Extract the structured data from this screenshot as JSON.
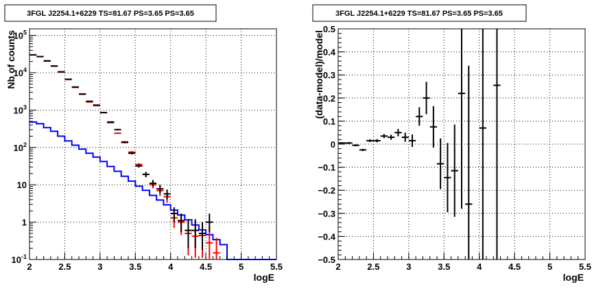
{
  "chart_data": [
    {
      "type": "line",
      "title": "3FGL J2254.1+6229 TS=81.67 PS=3.65 PS=3.65",
      "xlabel": "logE",
      "ylabel": "Nb of counts",
      "xlim": [
        2,
        5.5
      ],
      "ylim": [
        0.1,
        150000
      ],
      "yscale": "log",
      "grid": true,
      "x_ticks": [
        "2",
        "2.5",
        "3",
        "3.5",
        "4",
        "4.5",
        "5",
        "5.5"
      ],
      "y_ticks": [
        "10^-1",
        "1",
        "10",
        "10^2",
        "10^3",
        "10^4",
        "10^5"
      ],
      "series": [
        {
          "color": "#0000ff",
          "kind": "step",
          "bin_edges": [
            2.0,
            2.1,
            2.2,
            2.3,
            2.4,
            2.5,
            2.6,
            2.7,
            2.8,
            2.9,
            3.0,
            3.1,
            3.2,
            3.3,
            3.4,
            3.5,
            3.6,
            3.7,
            3.8,
            3.9,
            4.0,
            4.1,
            4.2,
            4.3,
            4.4,
            4.5,
            4.6,
            4.7,
            4.8,
            4.9,
            5.0,
            5.1,
            5.2,
            5.3,
            5.4,
            5.5
          ],
          "values": [
            480,
            430,
            340,
            270,
            200,
            150,
            115,
            90,
            70,
            55,
            42,
            31,
            23,
            17,
            12.5,
            9.2,
            7.1,
            5.2,
            3.9,
            2.9,
            2.1,
            1.55,
            1.15,
            0.84,
            0.62,
            0.46,
            0.34,
            0.25,
            0.1,
            0.1,
            0.1,
            0.1,
            0.1,
            0.1,
            0.1
          ]
        },
        {
          "color": "#ff0000",
          "kind": "errorbar",
          "x": [
            2.05,
            2.15,
            2.25,
            2.35,
            2.45,
            2.55,
            2.65,
            2.75,
            2.85,
            2.95,
            3.05,
            3.15,
            3.25,
            3.35,
            3.45,
            3.55,
            3.65,
            3.75,
            3.85,
            3.95,
            4.05,
            4.15,
            4.25,
            4.35,
            4.45,
            4.55,
            4.65
          ],
          "y": [
            30000,
            27000,
            21000,
            15000,
            10500,
            6600,
            4050,
            2650,
            1650,
            1320,
            850,
            460,
            240,
            135,
            75,
            35,
            19,
            10,
            7,
            4.8,
            1.3,
            1.0,
            0.5,
            0.42,
            0.44,
            0.28,
            0.15
          ],
          "ylow": [
            29700,
            26700,
            20800,
            14800,
            10400,
            6500,
            3980,
            2600,
            1620,
            1290,
            830,
            445,
            230,
            128,
            70,
            32,
            16,
            8,
            5,
            3.3,
            0.7,
            0.45,
            0.13,
            0.11,
            0.11,
            0.1,
            0.1
          ],
          "yhigh": [
            30300,
            27300,
            21200,
            15200,
            10600,
            6700,
            4120,
            2700,
            1680,
            1350,
            870,
            475,
            250,
            142,
            80,
            38,
            22,
            12.5,
            9,
            6.5,
            2.0,
            1.6,
            1.0,
            0.9,
            0.9,
            0.75,
            0.38
          ]
        },
        {
          "color": "#000000",
          "kind": "errorbar",
          "x": [
            2.05,
            2.15,
            2.25,
            2.35,
            2.45,
            2.55,
            2.65,
            2.75,
            2.85,
            2.95,
            3.05,
            3.15,
            3.25,
            3.35,
            3.45,
            3.55,
            3.65,
            3.75,
            3.85,
            3.95,
            4.05,
            4.15,
            4.25,
            4.35,
            4.45,
            4.55
          ],
          "y": [
            30200,
            27100,
            20600,
            15200,
            10600,
            6700,
            4150,
            2700,
            1720,
            1360,
            860,
            480,
            300,
            140,
            70,
            32,
            19,
            11,
            7.8,
            5.7,
            1.7,
            1.1,
            0.6,
            0.6,
            0.5,
            1.0
          ],
          "ylow": [
            29900,
            26800,
            20400,
            15000,
            10500,
            6600,
            4080,
            2650,
            1690,
            1330,
            840,
            465,
            285,
            133,
            65,
            29,
            16,
            9,
            6,
            4,
            1.0,
            0.55,
            0.2,
            0.2,
            0.18,
            0.55
          ],
          "yhigh": [
            30500,
            27400,
            20800,
            15400,
            10700,
            6800,
            4220,
            2750,
            1750,
            1390,
            880,
            495,
            315,
            147,
            75,
            35,
            22,
            13.5,
            10,
            7.5,
            2.5,
            1.7,
            1.2,
            1.2,
            1.0,
            1.7
          ]
        }
      ]
    },
    {
      "type": "scatter",
      "title": "3FGL J2254.1+6229 TS=81.67 PS=3.65 PS=3.65",
      "xlabel": "logE",
      "ylabel": "(data-model)/model",
      "xlim": [
        2,
        5.5
      ],
      "ylim": [
        -0.5,
        0.5
      ],
      "grid": true,
      "x_ticks": [
        "2",
        "2.5",
        "3",
        "3.5",
        "4",
        "4.5",
        "5",
        "5.5"
      ],
      "y_ticks": [
        "−0.5",
        "−0.4",
        "−0.3",
        "−0.2",
        "−0.1",
        "0",
        "0.1",
        "0.2",
        "0.3",
        "0.4",
        "0.5"
      ],
      "series": [
        {
          "color": "#000000",
          "x": [
            2.05,
            2.15,
            2.25,
            2.35,
            2.45,
            2.55,
            2.65,
            2.75,
            2.85,
            2.95,
            3.05,
            3.15,
            3.25,
            3.35,
            3.45,
            3.55,
            3.65,
            3.75,
            3.85,
            4.05,
            4.25
          ],
          "y": [
            0.005,
            0.005,
            -0.005,
            -0.025,
            0.015,
            0.015,
            0.035,
            0.03,
            0.05,
            0.03,
            0.015,
            0.12,
            0.2,
            0.075,
            -0.085,
            -0.145,
            -0.115,
            0.22,
            -0.26,
            0.07,
            0.255
          ],
          "yerr": [
            0.003,
            0.004,
            0.004,
            0.005,
            0.006,
            0.007,
            0.009,
            0.011,
            0.016,
            0.02,
            0.027,
            0.04,
            0.07,
            0.09,
            0.11,
            0.15,
            0.2,
            0.5,
            0.6,
            0.6,
            0.9
          ]
        }
      ]
    }
  ]
}
